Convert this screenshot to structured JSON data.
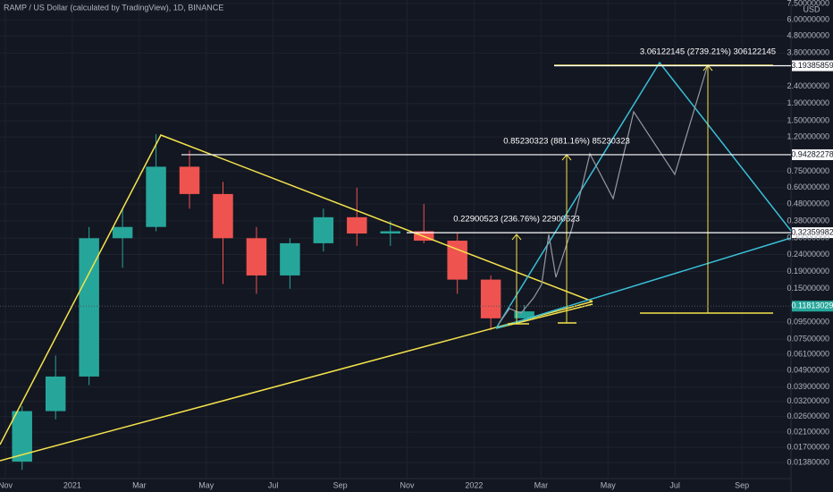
{
  "chart_data": {
    "type": "candlestick",
    "title": "RAMP / US Dollar (calculated by TradingView), 1D, BINANCE",
    "y_unit": "USD",
    "log_scale": true,
    "ylim": [
      0.0111,
      7.87
    ],
    "yticks": [
      {
        "value": 7.5,
        "label": "7.50000000"
      },
      {
        "value": 6.0,
        "label": "6.00000000"
      },
      {
        "value": 4.8,
        "label": "4.80000000"
      },
      {
        "value": 3.8,
        "label": "3.80000000"
      },
      {
        "value": 2.4,
        "label": "2.40000000"
      },
      {
        "value": 1.9,
        "label": "1.90000000"
      },
      {
        "value": 1.5,
        "label": "1.50000000"
      },
      {
        "value": 1.2,
        "label": "1.20000000"
      },
      {
        "value": 0.75,
        "label": "0.75000000"
      },
      {
        "value": 0.6,
        "label": "0.60000000"
      },
      {
        "value": 0.48,
        "label": "0.48000000"
      },
      {
        "value": 0.38,
        "label": "0.38000000"
      },
      {
        "value": 0.3,
        "label": "0.30000000"
      },
      {
        "value": 0.24,
        "label": "0.24000000"
      },
      {
        "value": 0.19,
        "label": "0.19000000"
      },
      {
        "value": 0.15,
        "label": "0.15000000"
      },
      {
        "value": 0.095,
        "label": "0.09500000"
      },
      {
        "value": 0.075,
        "label": "0.07500000"
      },
      {
        "value": 0.061,
        "label": "0.06100000"
      },
      {
        "value": 0.049,
        "label": "0.04900000"
      },
      {
        "value": 0.039,
        "label": "0.03900000"
      },
      {
        "value": 0.032,
        "label": "0.03200000"
      },
      {
        "value": 0.026,
        "label": "0.02600000"
      },
      {
        "value": 0.021,
        "label": "0.02100000"
      },
      {
        "value": 0.017,
        "label": "0.01700000"
      },
      {
        "value": 0.0138,
        "label": "0.01380000"
      }
    ],
    "xlim": [
      "2020-11",
      "2022-11"
    ],
    "xticks": [
      {
        "value": "2020-11",
        "label": "Nov"
      },
      {
        "value": "2021-01",
        "label": "2021"
      },
      {
        "value": "2021-03",
        "label": "Mar"
      },
      {
        "value": "2021-05",
        "label": "May"
      },
      {
        "value": "2021-07",
        "label": "Jul"
      },
      {
        "value": "2021-09",
        "label": "Sep"
      },
      {
        "value": "2021-11",
        "label": "Nov"
      },
      {
        "value": "2022-01",
        "label": "2022"
      },
      {
        "value": "2022-03",
        "label": "Mar"
      },
      {
        "value": "2022-05",
        "label": "May"
      },
      {
        "value": "2022-07",
        "label": "Jul"
      },
      {
        "value": "2022-09",
        "label": "Sep"
      }
    ],
    "x": [
      "2020-11",
      "2020-12",
      "2021-01",
      "2021-02",
      "2021-03",
      "2021-04",
      "2021-05",
      "2021-06",
      "2021-07",
      "2021-08",
      "2021-09",
      "2021-10",
      "2021-11",
      "2021-12",
      "2022-01",
      "2022-02"
    ],
    "open": [
      0.014,
      0.028,
      0.045,
      0.3,
      0.35,
      0.8,
      0.55,
      0.3,
      0.18,
      0.28,
      0.4,
      0.32,
      0.33,
      0.29,
      0.17,
      0.1
    ],
    "high": [
      0.03,
      0.06,
      0.35,
      0.45,
      1.25,
      1.0,
      0.65,
      0.35,
      0.3,
      0.45,
      0.6,
      0.38,
      0.48,
      0.32,
      0.18,
      0.12
    ],
    "low": [
      0.0125,
      0.025,
      0.04,
      0.2,
      0.33,
      0.45,
      0.16,
      0.14,
      0.15,
      0.25,
      0.27,
      0.27,
      0.28,
      0.14,
      0.085,
      0.095
    ],
    "close": [
      0.028,
      0.045,
      0.3,
      0.35,
      0.8,
      0.55,
      0.3,
      0.18,
      0.28,
      0.4,
      0.32,
      0.33,
      0.29,
      0.17,
      0.1,
      0.11
    ],
    "up_color": "#26a69a",
    "down_color": "#ef5350",
    "price_levels": [
      {
        "value": 3.19385859,
        "label": "3.19385859"
      },
      {
        "value": 0.94282278,
        "label": "0.94282278"
      },
      {
        "value": 0.32359982,
        "label": "0.32359982"
      }
    ],
    "last_price": {
      "value": 0.11813029,
      "label": "0.11813029"
    },
    "annotations": [
      "3.06122145 (2739.21%) 306122145",
      "0.85230323 (881.16%) 85230323",
      "0.22900523 (236.76%) 22900523"
    ]
  }
}
